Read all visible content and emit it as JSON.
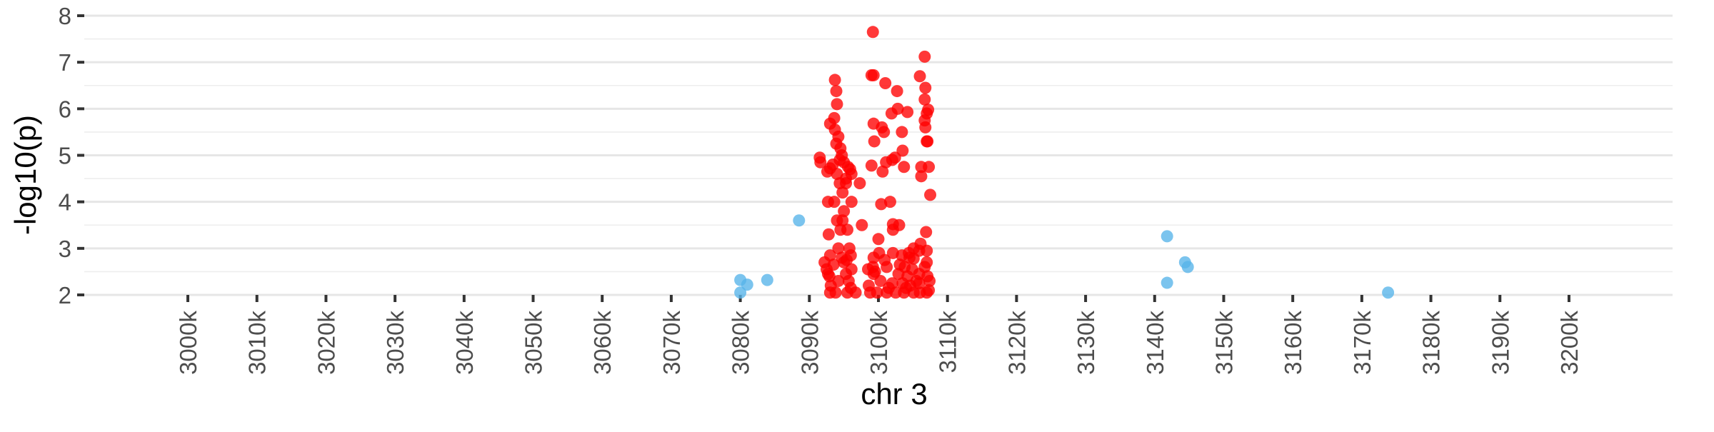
{
  "chart_data": {
    "type": "scatter",
    "title": "",
    "xlabel": "chr 3",
    "ylabel": "-log10(p)",
    "xlim": [
      2985000,
      3215000
    ],
    "ylim": [
      2,
      8
    ],
    "x_ticks": [
      3000000,
      3010000,
      3020000,
      3030000,
      3040000,
      3050000,
      3060000,
      3070000,
      3080000,
      3090000,
      3100000,
      3110000,
      3120000,
      3130000,
      3140000,
      3150000,
      3160000,
      3170000,
      3180000,
      3190000,
      3200000
    ],
    "x_tick_labels": [
      "3000k",
      "3010k",
      "3020k",
      "3030k",
      "3040k",
      "3050k",
      "3060k",
      "3070k",
      "3080k",
      "3090k",
      "3100k",
      "3110k",
      "3120k",
      "3130k",
      "3140k",
      "3150k",
      "3160k",
      "3170k",
      "3180k",
      "3190k",
      "3200k"
    ],
    "y_ticks": [
      2,
      3,
      4,
      5,
      6,
      7,
      8
    ],
    "y_tick_labels": [
      "2",
      "3",
      "4",
      "5",
      "6",
      "7",
      "8"
    ],
    "grid": true,
    "legend": "none",
    "series": [
      {
        "color": "#56B4E9",
        "points": [
          [
            3080000,
            2.32
          ],
          [
            3080000,
            2.05
          ],
          [
            3081000,
            2.22
          ],
          [
            3083900,
            2.32
          ],
          [
            3088500,
            3.6
          ],
          [
            3141800,
            3.26
          ],
          [
            3141800,
            2.26
          ],
          [
            3144400,
            2.7
          ],
          [
            3144800,
            2.6
          ],
          [
            3173800,
            2.05
          ]
        ]
      },
      {
        "color": "#FF0000",
        "points": [
          [
            3099200,
            7.65
          ],
          [
            3106700,
            7.12
          ],
          [
            3099000,
            6.72
          ],
          [
            3099300,
            6.72
          ],
          [
            3106000,
            6.7
          ],
          [
            3101000,
            6.55
          ],
          [
            3093700,
            6.62
          ],
          [
            3106800,
            6.45
          ],
          [
            3102700,
            6.38
          ],
          [
            3093900,
            6.38
          ],
          [
            3094000,
            6.1
          ],
          [
            3106700,
            6.2
          ],
          [
            3107200,
            5.98
          ],
          [
            3102800,
            6.0
          ],
          [
            3107000,
            5.9
          ],
          [
            3101900,
            5.9
          ],
          [
            3104200,
            5.93
          ],
          [
            3106700,
            5.75
          ],
          [
            3093000,
            5.68
          ],
          [
            3093600,
            5.8
          ],
          [
            3099300,
            5.68
          ],
          [
            3100500,
            5.6
          ],
          [
            3106800,
            5.6
          ],
          [
            3100800,
            5.5
          ],
          [
            3103400,
            5.5
          ],
          [
            3093700,
            5.55
          ],
          [
            3094200,
            5.4
          ],
          [
            3093900,
            5.25
          ],
          [
            3094500,
            5.15
          ],
          [
            3099400,
            5.3
          ],
          [
            3107100,
            5.3
          ],
          [
            3103500,
            5.1
          ],
          [
            3107000,
            5.3
          ],
          [
            3094700,
            5.0
          ],
          [
            3091500,
            4.95
          ],
          [
            3091600,
            4.85
          ],
          [
            3093000,
            4.72
          ],
          [
            3093400,
            4.8
          ],
          [
            3094400,
            4.9
          ],
          [
            3095000,
            4.85
          ],
          [
            3095600,
            4.75
          ],
          [
            3095900,
            4.7
          ],
          [
            3096100,
            4.6
          ],
          [
            3092600,
            4.65
          ],
          [
            3094000,
            4.6
          ],
          [
            3095300,
            4.5
          ],
          [
            3099000,
            4.78
          ],
          [
            3100600,
            4.65
          ],
          [
            3101100,
            4.85
          ],
          [
            3102000,
            4.9
          ],
          [
            3103700,
            4.75
          ],
          [
            3106200,
            4.75
          ],
          [
            3107300,
            4.75
          ],
          [
            3102400,
            4.95
          ],
          [
            3106200,
            4.55
          ],
          [
            3094400,
            4.4
          ],
          [
            3095300,
            4.4
          ],
          [
            3097300,
            4.4
          ],
          [
            3094800,
            4.2
          ],
          [
            3096100,
            4.0
          ],
          [
            3093600,
            4.0
          ],
          [
            3092700,
            4.0
          ],
          [
            3101700,
            4.0
          ],
          [
            3100400,
            3.95
          ],
          [
            3107500,
            4.15
          ],
          [
            3095000,
            3.8
          ],
          [
            3094800,
            3.6
          ],
          [
            3094000,
            3.6
          ],
          [
            3097600,
            3.5
          ],
          [
            3102100,
            3.52
          ],
          [
            3103000,
            3.5
          ],
          [
            3094500,
            3.4
          ],
          [
            3095500,
            3.4
          ],
          [
            3102100,
            3.4
          ],
          [
            3106900,
            3.35
          ],
          [
            3092800,
            3.3
          ],
          [
            3094200,
            3.0
          ],
          [
            3095800,
            3.0
          ],
          [
            3100000,
            3.2
          ],
          [
            3106100,
            3.1
          ],
          [
            3105100,
            3.0
          ],
          [
            3105900,
            2.95
          ],
          [
            3107000,
            2.95
          ],
          [
            3104400,
            2.9
          ],
          [
            3102100,
            2.9
          ],
          [
            3103400,
            2.85
          ],
          [
            3093000,
            2.85
          ],
          [
            3094700,
            2.8
          ],
          [
            3099300,
            2.8
          ],
          [
            3100900,
            2.75
          ],
          [
            3105100,
            2.78
          ],
          [
            3107000,
            2.7
          ],
          [
            3092200,
            2.7
          ],
          [
            3093500,
            2.65
          ],
          [
            3095000,
            2.7
          ],
          [
            3095400,
            2.75
          ],
          [
            3092500,
            2.55
          ],
          [
            3096100,
            2.55
          ],
          [
            3098500,
            2.55
          ],
          [
            3099200,
            2.6
          ],
          [
            3101200,
            2.6
          ],
          [
            3103800,
            2.6
          ],
          [
            3104900,
            2.55
          ],
          [
            3106700,
            2.6
          ],
          [
            3092900,
            2.4
          ],
          [
            3095300,
            2.45
          ],
          [
            3099300,
            2.45
          ],
          [
            3102900,
            2.45
          ],
          [
            3104200,
            2.4
          ],
          [
            3105900,
            2.45
          ],
          [
            3107100,
            2.4
          ],
          [
            3093100,
            2.2
          ],
          [
            3094200,
            2.3
          ],
          [
            3095700,
            2.3
          ],
          [
            3098600,
            2.2
          ],
          [
            3100300,
            2.3
          ],
          [
            3102000,
            2.25
          ],
          [
            3103500,
            2.25
          ],
          [
            3104600,
            2.2
          ],
          [
            3105900,
            2.25
          ],
          [
            3107400,
            2.3
          ],
          [
            3093000,
            2.05
          ],
          [
            3093800,
            2.05
          ],
          [
            3095500,
            2.05
          ],
          [
            3096700,
            2.05
          ],
          [
            3098800,
            2.05
          ],
          [
            3099800,
            2.05
          ],
          [
            3101200,
            2.05
          ],
          [
            3102500,
            2.05
          ],
          [
            3103700,
            2.05
          ],
          [
            3105100,
            2.05
          ],
          [
            3106000,
            2.05
          ],
          [
            3107000,
            2.05
          ],
          [
            3096000,
            2.15
          ],
          [
            3101500,
            2.15
          ],
          [
            3104000,
            2.15
          ],
          [
            3107300,
            2.1
          ],
          [
            3099500,
            2.5
          ],
          [
            3100100,
            2.9
          ],
          [
            3103100,
            2.65
          ],
          [
            3096000,
            2.85
          ],
          [
            3092700,
            2.45
          ],
          [
            3105500,
            2.3
          ],
          [
            3104500,
            2.8
          ]
        ]
      }
    ]
  }
}
